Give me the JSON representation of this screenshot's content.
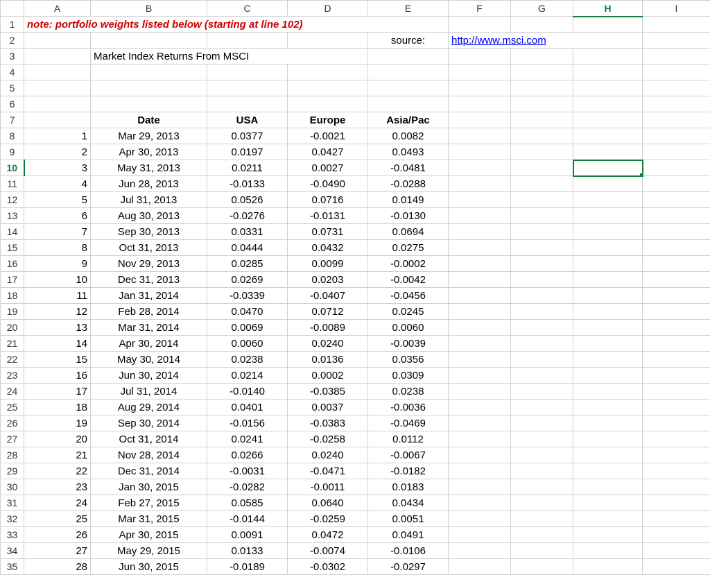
{
  "columns": [
    "A",
    "B",
    "C",
    "D",
    "E",
    "F",
    "G",
    "H",
    "I"
  ],
  "note": "note: portfolio weights listed below (starting at line 102)",
  "source_label": "source:",
  "source_link": "http://www.msci.com",
  "title": "Market Index Returns From MSCI",
  "headers": {
    "date": "Date",
    "usa": "USA",
    "europe": "Europe",
    "asiapac": "Asia/Pac"
  },
  "active_col": "H",
  "active_row": 10,
  "selected_cell": "H10",
  "colors": {
    "note": "#cc0000",
    "link": "#0000ee",
    "accent": "#107c41",
    "grid": "#d0d0d0"
  },
  "rows": [
    {
      "n": 1,
      "date": "Mar 29, 2013",
      "usa": "0.0377",
      "eu": "-0.0021",
      "ap": "0.0082"
    },
    {
      "n": 2,
      "date": "Apr 30, 2013",
      "usa": "0.0197",
      "eu": "0.0427",
      "ap": "0.0493"
    },
    {
      "n": 3,
      "date": "May 31, 2013",
      "usa": "0.0211",
      "eu": "0.0027",
      "ap": "-0.0481"
    },
    {
      "n": 4,
      "date": "Jun 28, 2013",
      "usa": "-0.0133",
      "eu": "-0.0490",
      "ap": "-0.0288"
    },
    {
      "n": 5,
      "date": "Jul 31, 2013",
      "usa": "0.0526",
      "eu": "0.0716",
      "ap": "0.0149"
    },
    {
      "n": 6,
      "date": "Aug 30, 2013",
      "usa": "-0.0276",
      "eu": "-0.0131",
      "ap": "-0.0130"
    },
    {
      "n": 7,
      "date": "Sep 30, 2013",
      "usa": "0.0331",
      "eu": "0.0731",
      "ap": "0.0694"
    },
    {
      "n": 8,
      "date": "Oct 31, 2013",
      "usa": "0.0444",
      "eu": "0.0432",
      "ap": "0.0275"
    },
    {
      "n": 9,
      "date": "Nov 29, 2013",
      "usa": "0.0285",
      "eu": "0.0099",
      "ap": "-0.0002"
    },
    {
      "n": 10,
      "date": "Dec 31, 2013",
      "usa": "0.0269",
      "eu": "0.0203",
      "ap": "-0.0042"
    },
    {
      "n": 11,
      "date": "Jan 31, 2014",
      "usa": "-0.0339",
      "eu": "-0.0407",
      "ap": "-0.0456"
    },
    {
      "n": 12,
      "date": "Feb 28, 2014",
      "usa": "0.0470",
      "eu": "0.0712",
      "ap": "0.0245"
    },
    {
      "n": 13,
      "date": "Mar 31, 2014",
      "usa": "0.0069",
      "eu": "-0.0089",
      "ap": "0.0060"
    },
    {
      "n": 14,
      "date": "Apr 30, 2014",
      "usa": "0.0060",
      "eu": "0.0240",
      "ap": "-0.0039"
    },
    {
      "n": 15,
      "date": "May 30, 2014",
      "usa": "0.0238",
      "eu": "0.0136",
      "ap": "0.0356"
    },
    {
      "n": 16,
      "date": "Jun 30, 2014",
      "usa": "0.0214",
      "eu": "0.0002",
      "ap": "0.0309"
    },
    {
      "n": 17,
      "date": "Jul 31, 2014",
      "usa": "-0.0140",
      "eu": "-0.0385",
      "ap": "0.0238"
    },
    {
      "n": 18,
      "date": "Aug 29, 2014",
      "usa": "0.0401",
      "eu": "0.0037",
      "ap": "-0.0036"
    },
    {
      "n": 19,
      "date": "Sep 30, 2014",
      "usa": "-0.0156",
      "eu": "-0.0383",
      "ap": "-0.0469"
    },
    {
      "n": 20,
      "date": "Oct 31, 2014",
      "usa": "0.0241",
      "eu": "-0.0258",
      "ap": "0.0112"
    },
    {
      "n": 21,
      "date": "Nov 28, 2014",
      "usa": "0.0266",
      "eu": "0.0240",
      "ap": "-0.0067"
    },
    {
      "n": 22,
      "date": "Dec 31, 2014",
      "usa": "-0.0031",
      "eu": "-0.0471",
      "ap": "-0.0182"
    },
    {
      "n": 23,
      "date": "Jan 30, 2015",
      "usa": "-0.0282",
      "eu": "-0.0011",
      "ap": "0.0183"
    },
    {
      "n": 24,
      "date": "Feb 27, 2015",
      "usa": "0.0585",
      "eu": "0.0640",
      "ap": "0.0434"
    },
    {
      "n": 25,
      "date": "Mar 31, 2015",
      "usa": "-0.0144",
      "eu": "-0.0259",
      "ap": "0.0051"
    },
    {
      "n": 26,
      "date": "Apr 30, 2015",
      "usa": "0.0091",
      "eu": "0.0472",
      "ap": "0.0491"
    },
    {
      "n": 27,
      "date": "May 29, 2015",
      "usa": "0.0133",
      "eu": "-0.0074",
      "ap": "-0.0106"
    },
    {
      "n": 28,
      "date": "Jun 30, 2015",
      "usa": "-0.0189",
      "eu": "-0.0302",
      "ap": "-0.0297"
    }
  ]
}
